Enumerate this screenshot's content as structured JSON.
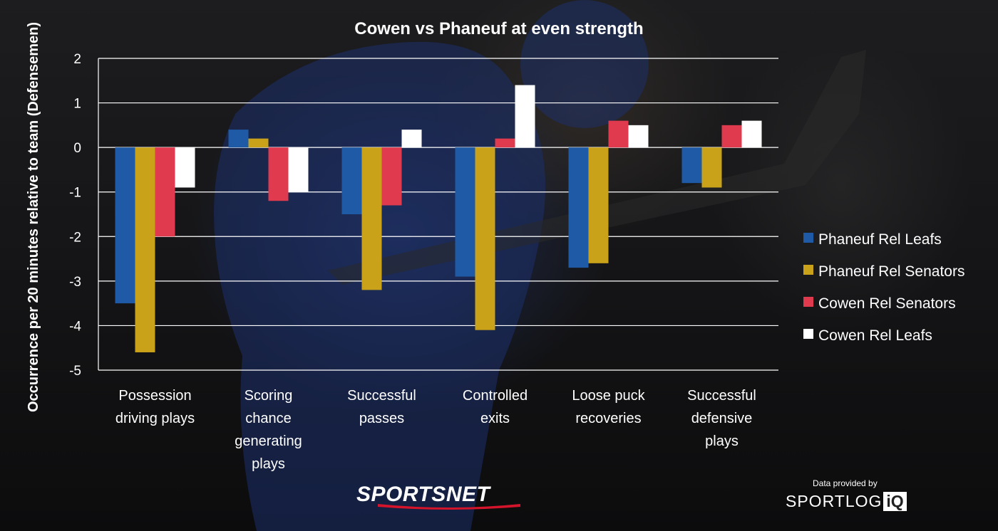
{
  "colors": {
    "phaneuf_leafs": "#1f5aa6",
    "phaneuf_senators": "#c9a21a",
    "cowen_senators": "#e03a4e",
    "cowen_leafs": "#ffffff",
    "gridline": "#ffffff"
  },
  "chart_data": {
    "type": "bar",
    "title": "Cowen vs Phaneuf at even strength",
    "ylabel": "Occurrence per 20 minutes relative to team (Defensemen)",
    "xlabel": "",
    "ylim": [
      -5,
      2
    ],
    "yticks": [
      2,
      1,
      0,
      -1,
      -2,
      -3,
      -4,
      -5
    ],
    "grid": true,
    "legend_position": "right",
    "categories": [
      [
        "Possession",
        "driving plays"
      ],
      [
        "Scoring",
        "chance",
        "generating",
        "plays"
      ],
      [
        "Successful",
        "passes"
      ],
      [
        "Controlled",
        "exits"
      ],
      [
        "Loose puck",
        "recoveries"
      ],
      [
        "Successful",
        "defensive",
        "plays"
      ]
    ],
    "series": [
      {
        "name": "Phaneuf Rel Leafs",
        "color_key": "phaneuf_leafs",
        "values": [
          -3.5,
          0.4,
          -1.5,
          -2.9,
          -2.7,
          -0.8
        ]
      },
      {
        "name": "Phaneuf Rel Senators",
        "color_key": "phaneuf_senators",
        "values": [
          -4.6,
          0.2,
          -3.2,
          -4.1,
          -2.6,
          -0.9
        ]
      },
      {
        "name": "Cowen Rel Senators",
        "color_key": "cowen_senators",
        "values": [
          -2.0,
          -1.2,
          -1.3,
          0.2,
          0.6,
          0.5
        ]
      },
      {
        "name": "Cowen Rel Leafs",
        "color_key": "cowen_leafs",
        "values": [
          -0.9,
          -1.0,
          0.4,
          1.4,
          0.5,
          0.6
        ]
      }
    ]
  },
  "branding": {
    "network_logo": "SPORTSNET",
    "credit_caption": "Data provided by",
    "data_logo_text": "SPORTLOG",
    "data_logo_box": "iQ"
  }
}
